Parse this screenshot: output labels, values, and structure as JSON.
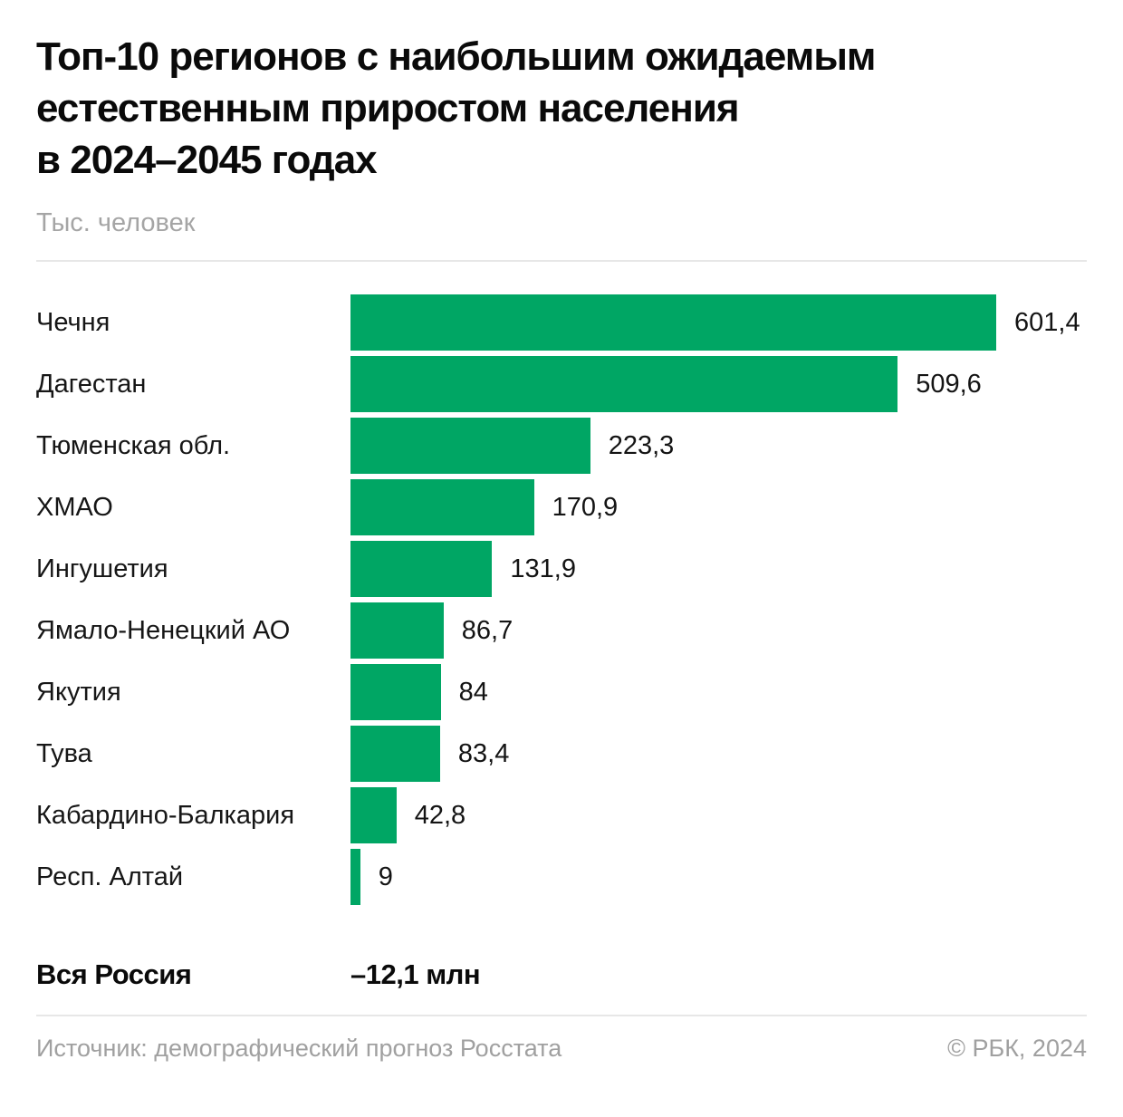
{
  "header": {
    "title_lines": [
      "Топ-10 регионов с наибольшим ожидаемым",
      "естественным приростом населения",
      "в 2024–2045 годах"
    ],
    "subtitle": "Тыс. человек"
  },
  "chart_data": {
    "type": "bar",
    "orientation": "horizontal",
    "title": "Топ-10 регионов с наибольшим ожидаемым естественным приростом населения в 2024–2045 годах",
    "xlabel": "Тыс. человек",
    "ylabel": "",
    "xlim": [
      0,
      650
    ],
    "grid": false,
    "legend": false,
    "bar_color": "#00a664",
    "categories": [
      "Чечня",
      "Дагестан",
      "Тюменская обл.",
      "ХМАО",
      "Ингушетия",
      "Ямало-Ненецкий АО",
      "Якутия",
      "Тува",
      "Кабардино-Балкария",
      "Респ. Алтай"
    ],
    "values": [
      601.4,
      509.6,
      223.3,
      170.9,
      131.9,
      86.7,
      84,
      83.4,
      42.8,
      9
    ],
    "value_labels": [
      "601,4",
      "509,6",
      "223,3",
      "170,9",
      "131,9",
      "86,7",
      "84",
      "83,4",
      "42,8",
      "9"
    ]
  },
  "summary": {
    "label": "Вся Россия",
    "value": "–12,1 млн"
  },
  "footer": {
    "source": "Источник: демографический прогноз Росстата",
    "copyright": "© РБК, 2024"
  }
}
